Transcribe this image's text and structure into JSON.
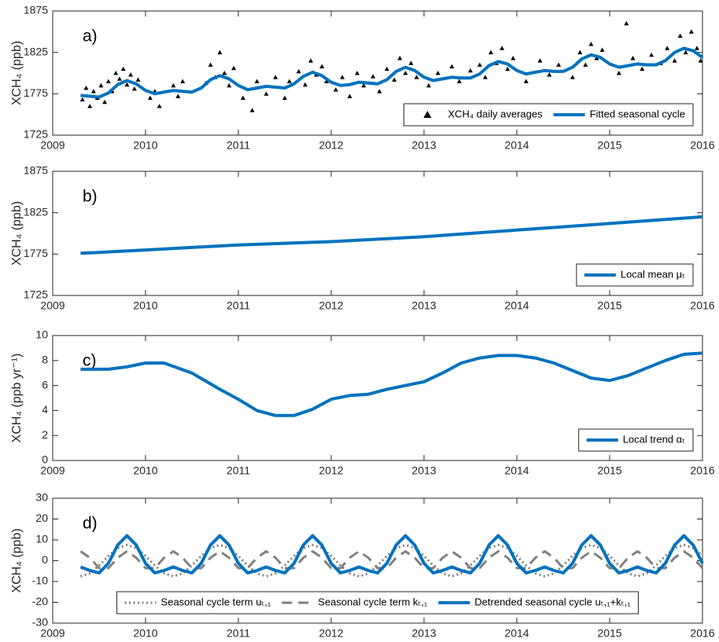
{
  "chart_data": [
    {
      "type": "line",
      "panel_label": "a)",
      "ylabel": "XCH₄ (ppb)",
      "xlim": [
        2009,
        2016
      ],
      "xticks": [
        2009,
        2010,
        2011,
        2012,
        2013,
        2014,
        2015,
        2016
      ],
      "ylim": [
        1725,
        1875
      ],
      "yticks": [
        1725,
        1775,
        1825,
        1875
      ],
      "legend": "lower right",
      "series": [
        {
          "name": "XCH₄ daily averages",
          "kind": "scatter",
          "color": "#000000",
          "x": [
            2009.32,
            2009.36,
            2009.4,
            2009.44,
            2009.48,
            2009.52,
            2009.56,
            2009.6,
            2009.64,
            2009.68,
            2009.72,
            2009.76,
            2009.8,
            2009.84,
            2009.88,
            2009.92,
            2010.05,
            2010.1,
            2010.15,
            2010.3,
            2010.35,
            2010.4,
            2010.65,
            2010.7,
            2010.75,
            2010.8,
            2010.85,
            2010.9,
            2010.95,
            2011.05,
            2011.15,
            2011.2,
            2011.3,
            2011.4,
            2011.5,
            2011.55,
            2011.65,
            2011.72,
            2011.78,
            2011.84,
            2011.9,
            2011.95,
            2012.05,
            2012.12,
            2012.2,
            2012.28,
            2012.35,
            2012.45,
            2012.52,
            2012.6,
            2012.68,
            2012.74,
            2012.8,
            2012.86,
            2012.92,
            2013.05,
            2013.15,
            2013.3,
            2013.38,
            2013.5,
            2013.6,
            2013.66,
            2013.72,
            2013.78,
            2013.84,
            2013.9,
            2013.96,
            2014.1,
            2014.25,
            2014.35,
            2014.45,
            2014.6,
            2014.68,
            2014.74,
            2014.8,
            2014.86,
            2014.92,
            2015.1,
            2015.18,
            2015.25,
            2015.35,
            2015.45,
            2015.55,
            2015.62,
            2015.7,
            2015.76,
            2015.82,
            2015.88,
            2015.94,
            2015.98
          ],
          "values": [
            1768,
            1782,
            1760,
            1778,
            1770,
            1785,
            1765,
            1790,
            1778,
            1800,
            1793,
            1805,
            1786,
            1798,
            1781,
            1792,
            1770,
            1778,
            1760,
            1785,
            1772,
            1790,
            1788,
            1810,
            1795,
            1825,
            1800,
            1785,
            1806,
            1770,
            1755,
            1790,
            1775,
            1795,
            1770,
            1790,
            1802,
            1786,
            1815,
            1798,
            1808,
            1790,
            1780,
            1795,
            1772,
            1800,
            1785,
            1796,
            1778,
            1805,
            1792,
            1818,
            1800,
            1812,
            1795,
            1785,
            1800,
            1808,
            1790,
            1803,
            1810,
            1795,
            1825,
            1812,
            1830,
            1805,
            1818,
            1790,
            1815,
            1798,
            1810,
            1795,
            1825,
            1810,
            1835,
            1818,
            1828,
            1800,
            1860,
            1818,
            1805,
            1822,
            1812,
            1830,
            1815,
            1845,
            1825,
            1850,
            1830,
            1815
          ]
        },
        {
          "name": "Fitted seasonal cycle",
          "kind": "line",
          "line_style": "solid",
          "color": "#0072bd",
          "x": [
            2009.3,
            2009.4,
            2009.5,
            2009.6,
            2009.7,
            2009.8,
            2009.9,
            2010.0,
            2010.1,
            2010.2,
            2010.3,
            2010.4,
            2010.5,
            2010.6,
            2010.7,
            2010.8,
            2010.9,
            2011.0,
            2011.1,
            2011.2,
            2011.3,
            2011.4,
            2011.5,
            2011.6,
            2011.7,
            2011.8,
            2011.9,
            2012.0,
            2012.1,
            2012.2,
            2012.3,
            2012.4,
            2012.5,
            2012.6,
            2012.7,
            2012.8,
            2012.9,
            2013.0,
            2013.1,
            2013.2,
            2013.3,
            2013.4,
            2013.5,
            2013.6,
            2013.7,
            2013.8,
            2013.9,
            2014.0,
            2014.1,
            2014.2,
            2014.3,
            2014.4,
            2014.5,
            2014.6,
            2014.7,
            2014.8,
            2014.9,
            2015.0,
            2015.1,
            2015.2,
            2015.3,
            2015.4,
            2015.5,
            2015.6,
            2015.7,
            2015.8,
            2015.9,
            2016.0
          ],
          "values": [
            1773,
            1772,
            1771,
            1776,
            1786,
            1791,
            1787,
            1779,
            1775,
            1777,
            1779,
            1778,
            1777,
            1782,
            1792,
            1797,
            1793,
            1785,
            1780,
            1782,
            1784,
            1783,
            1782,
            1787,
            1796,
            1801,
            1797,
            1789,
            1785,
            1786,
            1789,
            1788,
            1787,
            1792,
            1802,
            1807,
            1803,
            1795,
            1791,
            1793,
            1795,
            1794,
            1794,
            1799,
            1809,
            1814,
            1811,
            1803,
            1799,
            1801,
            1803,
            1802,
            1802,
            1807,
            1817,
            1822,
            1819,
            1811,
            1807,
            1809,
            1811,
            1810,
            1810,
            1815,
            1825,
            1830,
            1827,
            1819
          ]
        }
      ]
    },
    {
      "type": "line",
      "panel_label": "b)",
      "ylabel": "XCH₄ (ppb)",
      "xlim": [
        2009,
        2016
      ],
      "xticks": [
        2009,
        2010,
        2011,
        2012,
        2013,
        2014,
        2015,
        2016
      ],
      "ylim": [
        1725,
        1875
      ],
      "yticks": [
        1725,
        1775,
        1825,
        1875
      ],
      "legend": "lower right",
      "series": [
        {
          "name": "Local mean μₜ",
          "kind": "line",
          "line_style": "solid",
          "color": "#0072bd",
          "x": [
            2009.3,
            2009.5,
            2010.0,
            2010.5,
            2011.0,
            2011.5,
            2012.0,
            2012.5,
            2013.0,
            2013.5,
            2014.0,
            2014.5,
            2015.0,
            2015.5,
            2016.0
          ],
          "values": [
            1776,
            1777,
            1780,
            1783,
            1786,
            1788,
            1790,
            1793,
            1796,
            1800,
            1804,
            1808,
            1812,
            1816,
            1820
          ]
        }
      ]
    },
    {
      "type": "line",
      "panel_label": "c)",
      "ylabel": "XCH₄ (ppb yr⁻¹)",
      "xlim": [
        2009,
        2016
      ],
      "xticks": [
        2009,
        2010,
        2011,
        2012,
        2013,
        2014,
        2015,
        2016
      ],
      "ylim": [
        0,
        10
      ],
      "yticks": [
        0,
        2,
        4,
        6,
        8,
        10
      ],
      "legend": "lower right",
      "series": [
        {
          "name": "Local trend αₜ",
          "kind": "line",
          "line_style": "solid",
          "color": "#0072bd",
          "x": [
            2009.3,
            2009.6,
            2009.8,
            2010.0,
            2010.2,
            2010.5,
            2010.8,
            2011.0,
            2011.2,
            2011.4,
            2011.6,
            2011.8,
            2012.0,
            2012.2,
            2012.4,
            2012.6,
            2012.8,
            2013.0,
            2013.2,
            2013.4,
            2013.6,
            2013.8,
            2014.0,
            2014.2,
            2014.4,
            2014.6,
            2014.8,
            2015.0,
            2015.2,
            2015.4,
            2015.6,
            2015.8,
            2016.0
          ],
          "values": [
            7.3,
            7.3,
            7.5,
            7.8,
            7.8,
            7.0,
            5.7,
            4.9,
            4.0,
            3.6,
            3.6,
            4.1,
            4.9,
            5.2,
            5.3,
            5.7,
            6.0,
            6.3,
            7.0,
            7.8,
            8.2,
            8.4,
            8.4,
            8.2,
            7.8,
            7.2,
            6.6,
            6.4,
            6.8,
            7.4,
            8.0,
            8.5,
            8.6
          ]
        }
      ]
    },
    {
      "type": "line",
      "panel_label": "d)",
      "ylabel": "XCH₄ (ppb)",
      "xlim": [
        2009,
        2016
      ],
      "xticks": [
        2009,
        2010,
        2011,
        2012,
        2013,
        2014,
        2015,
        2016
      ],
      "ylim": [
        -30,
        30
      ],
      "yticks": [
        -30,
        -20,
        -10,
        0,
        10,
        20,
        30
      ],
      "legend": "lower center",
      "series": [
        {
          "name": "Seasonal cycle term uₜ,₁",
          "kind": "line",
          "line_style": "dotted",
          "color": "#808080",
          "x": [
            2009.3,
            2009.4,
            2009.5,
            2009.6,
            2009.7,
            2009.8,
            2009.9,
            2010.0,
            2010.1,
            2010.2,
            2010.3,
            2010.4,
            2010.5,
            2010.6,
            2010.7,
            2010.8,
            2010.9,
            2011.0,
            2011.1,
            2011.2,
            2011.3,
            2011.4,
            2011.5,
            2011.6,
            2011.7,
            2011.8,
            2011.9,
            2012.0,
            2012.1,
            2012.2,
            2012.3,
            2012.4,
            2012.5,
            2012.6,
            2012.7,
            2012.8,
            2012.9,
            2013.0,
            2013.1,
            2013.2,
            2013.3,
            2013.4,
            2013.5,
            2013.6,
            2013.7,
            2013.8,
            2013.9,
            2014.0,
            2014.1,
            2014.2,
            2014.3,
            2014.4,
            2014.5,
            2014.6,
            2014.7,
            2014.8,
            2014.9,
            2015.0,
            2015.1,
            2015.2,
            2015.3,
            2015.4,
            2015.5,
            2015.6,
            2015.7,
            2015.8,
            2015.9,
            2016.0
          ],
          "values": [
            -7.5,
            -6.1,
            -2.3,
            2.3,
            6.1,
            7.5,
            6.1,
            2.3,
            -2.3,
            -6.1,
            -7.5,
            -6.1,
            -2.3,
            2.3,
            6.1,
            7.5,
            6.1,
            2.3,
            -2.3,
            -6.1,
            -7.5,
            -6.1,
            -2.3,
            2.3,
            6.1,
            7.5,
            6.1,
            2.3,
            -2.3,
            -6.1,
            -7.5,
            -6.1,
            -2.3,
            2.3,
            6.1,
            7.5,
            6.1,
            2.3,
            -2.3,
            -6.1,
            -7.5,
            -6.1,
            -2.3,
            2.3,
            6.1,
            7.5,
            6.1,
            2.3,
            -2.3,
            -6.1,
            -7.5,
            -6.1,
            -2.3,
            2.3,
            6.1,
            7.5,
            6.1,
            2.3,
            -2.3,
            -6.1,
            -7.5,
            -6.1,
            -2.3,
            2.3,
            6.1,
            7.5,
            6.1,
            2.3
          ]
        },
        {
          "name": "Seasonal cycle term kₜ,₁",
          "kind": "line",
          "line_style": "dashed",
          "color": "#808080",
          "x": [
            2009.3,
            2009.4,
            2009.5,
            2009.6,
            2009.7,
            2009.8,
            2009.9,
            2010.0,
            2010.1,
            2010.2,
            2010.3,
            2010.4,
            2010.5,
            2010.6,
            2010.7,
            2010.8,
            2010.9,
            2011.0,
            2011.1,
            2011.2,
            2011.3,
            2011.4,
            2011.5,
            2011.6,
            2011.7,
            2011.8,
            2011.9,
            2012.0,
            2012.1,
            2012.2,
            2012.3,
            2012.4,
            2012.5,
            2012.6,
            2012.7,
            2012.8,
            2012.9,
            2013.0,
            2013.1,
            2013.2,
            2013.3,
            2013.4,
            2013.5,
            2013.6,
            2013.7,
            2013.8,
            2013.9,
            2014.0,
            2014.1,
            2014.2,
            2014.3,
            2014.4,
            2014.5,
            2014.6,
            2014.7,
            2014.8,
            2014.9,
            2015.0,
            2015.1,
            2015.2,
            2015.3,
            2015.4,
            2015.5,
            2015.6,
            2015.7,
            2015.8,
            2015.9,
            2016.0
          ],
          "values": [
            4.5,
            1.4,
            -3.6,
            -3.6,
            1.4,
            4.5,
            1.4,
            -3.6,
            -3.6,
            1.4,
            4.5,
            1.4,
            -3.6,
            -3.6,
            1.4,
            4.5,
            1.4,
            -3.6,
            -3.6,
            1.4,
            4.5,
            1.4,
            -3.6,
            -3.6,
            1.4,
            4.5,
            1.4,
            -3.6,
            -3.6,
            1.4,
            4.5,
            1.4,
            -3.6,
            -3.6,
            1.4,
            4.5,
            1.4,
            -3.6,
            -3.6,
            1.4,
            4.5,
            1.4,
            -3.6,
            -3.6,
            1.4,
            4.5,
            1.4,
            -3.6,
            -3.6,
            1.4,
            4.5,
            1.4,
            -3.6,
            -3.6,
            1.4,
            4.5,
            1.4,
            -3.6,
            -3.6,
            1.4,
            4.5,
            1.4,
            -3.6,
            -3.6,
            1.4,
            4.5,
            1.4,
            -3.6
          ]
        },
        {
          "name": "Detrended seasonal cycle uₜ,₁+kₜ,₁",
          "kind": "line",
          "line_style": "solid",
          "color": "#0072bd",
          "x": [
            2009.3,
            2009.4,
            2009.5,
            2009.6,
            2009.7,
            2009.8,
            2009.9,
            2010.0,
            2010.1,
            2010.2,
            2010.3,
            2010.4,
            2010.5,
            2010.6,
            2010.7,
            2010.8,
            2010.9,
            2011.0,
            2011.1,
            2011.2,
            2011.3,
            2011.4,
            2011.5,
            2011.6,
            2011.7,
            2011.8,
            2011.9,
            2012.0,
            2012.1,
            2012.2,
            2012.3,
            2012.4,
            2012.5,
            2012.6,
            2012.7,
            2012.8,
            2012.9,
            2013.0,
            2013.1,
            2013.2,
            2013.3,
            2013.4,
            2013.5,
            2013.6,
            2013.7,
            2013.8,
            2013.9,
            2014.0,
            2014.1,
            2014.2,
            2014.3,
            2014.4,
            2014.5,
            2014.6,
            2014.7,
            2014.8,
            2014.9,
            2015.0,
            2015.1,
            2015.2,
            2015.3,
            2015.4,
            2015.5,
            2015.6,
            2015.7,
            2015.8,
            2015.9,
            2016.0
          ],
          "values": [
            -3,
            -4.7,
            -5.9,
            -1.3,
            7.5,
            12,
            7.5,
            -1.3,
            -5.9,
            -4.7,
            -3,
            -4.7,
            -5.9,
            -1.3,
            7.5,
            12,
            7.5,
            -1.3,
            -5.9,
            -4.7,
            -3,
            -4.7,
            -5.9,
            -1.3,
            7.5,
            12,
            7.5,
            -1.3,
            -5.9,
            -4.7,
            -3,
            -4.7,
            -5.9,
            -1.3,
            7.5,
            12,
            7.5,
            -1.3,
            -5.9,
            -4.7,
            -3,
            -4.7,
            -5.9,
            -1.3,
            7.5,
            12,
            7.5,
            -1.3,
            -5.9,
            -4.7,
            -3,
            -4.7,
            -5.9,
            -1.3,
            7.5,
            12,
            7.5,
            -1.3,
            -5.9,
            -4.7,
            -3,
            -4.7,
            -5.9,
            -1.3,
            7.5,
            12,
            7.5,
            -1.3
          ]
        }
      ]
    }
  ]
}
